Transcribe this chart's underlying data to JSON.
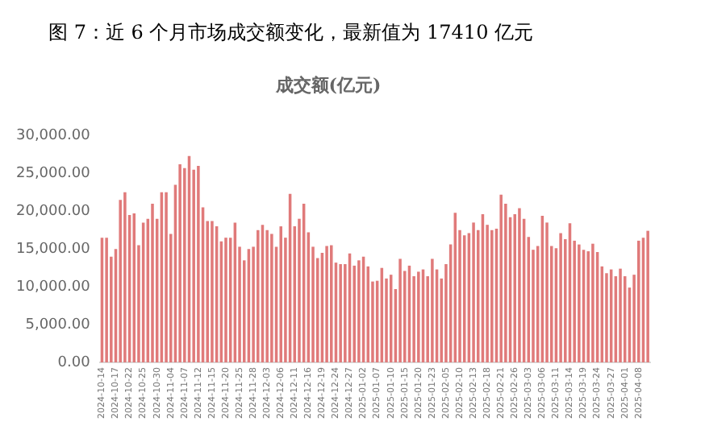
{
  "chart_data": {
    "type": "bar",
    "title": "图 7：近 6 个月市场成交额变化，最新值为 17410 亿元",
    "subtitle": "成交额(亿元)",
    "categories": [
      "2024-10-14",
      null,
      null,
      "2024-10-17",
      null,
      null,
      "2024-10-22",
      null,
      null,
      "2024-10-25",
      null,
      null,
      "2024-10-30",
      null,
      null,
      "2024-11-04",
      null,
      null,
      "2024-11-07",
      null,
      null,
      "2024-11-12",
      null,
      null,
      "2024-11-15",
      null,
      null,
      "2024-11-20",
      null,
      null,
      "2024-11-25",
      null,
      null,
      "2024-11-28",
      null,
      null,
      "2024-12-03",
      null,
      null,
      "2024-12-06",
      null,
      null,
      "2024-12-11",
      null,
      null,
      "2024-12-16",
      null,
      null,
      "2024-12-19",
      null,
      null,
      "2024-12-24",
      null,
      null,
      "2024-12-27",
      null,
      null,
      "2025-01-02",
      null,
      null,
      "2025-01-07",
      null,
      null,
      "2025-01-10",
      null,
      null,
      "2025-01-15",
      null,
      null,
      "2025-01-20",
      null,
      null,
      "2025-01-23",
      null,
      null,
      "2025-02-05",
      null,
      null,
      "2025-02-10",
      null,
      null,
      "2025-02-13",
      null,
      null,
      "2025-02-18",
      null,
      null,
      "2025-02-21",
      null,
      null,
      "2025-02-26",
      null,
      null,
      "2025-03-03",
      null,
      null,
      "2025-03-06",
      null,
      null,
      "2025-03-11",
      null,
      null,
      "2025-03-14",
      null,
      null,
      "2025-03-19",
      null,
      null,
      "2025-03-24",
      null,
      null,
      "2025-03-27",
      null,
      null,
      "2025-04-01",
      null,
      null,
      "2025-04-08",
      null,
      null
    ],
    "values": [
      16500,
      16500,
      14000,
      15000,
      21500,
      22500,
      19500,
      19700,
      15500,
      18500,
      19000,
      21000,
      19000,
      22500,
      22500,
      17000,
      23500,
      26200,
      25700,
      27300,
      25500,
      26000,
      20500,
      18700,
      18700,
      18000,
      16000,
      16500,
      16500,
      18500,
      15300,
      13500,
      15000,
      15300,
      17500,
      18200,
      17500,
      17000,
      15300,
      18000,
      16500,
      22300,
      18000,
      19000,
      21000,
      17200,
      15300,
      13800,
      14500,
      15400,
      15500,
      13200,
      13000,
      13000,
      14400,
      12800,
      13500,
      14000,
      12700,
      10700,
      10800,
      12500,
      11100,
      11600,
      9700,
      13700,
      12100,
      12800,
      11400,
      12000,
      12300,
      11400,
      13700,
      12300,
      11100,
      13000,
      15600,
      19800,
      17500,
      16800,
      17100,
      18500,
      17500,
      19600,
      18200,
      17500,
      17700,
      22200,
      21000,
      19200,
      19600,
      20400,
      19000,
      16600,
      14900,
      15400,
      19400,
      18500,
      15400,
      15100,
      17100,
      16300,
      18400,
      16100,
      15600,
      14900,
      14700,
      15700,
      14600,
      12700,
      11800,
      12300,
      11400,
      12400,
      11400,
      9900,
      11600,
      16100,
      16500,
      17410
    ],
    "color": "#e07a7a",
    "ylim": [
      0,
      30000
    ],
    "yticks": [
      {
        "value": 0,
        "label": "0.00"
      },
      {
        "value": 5000,
        "label": "5,000.00"
      },
      {
        "value": 10000,
        "label": "10,000.00"
      },
      {
        "value": 15000,
        "label": "15,000.00"
      },
      {
        "value": 20000,
        "label": "20,000.00"
      },
      {
        "value": 25000,
        "label": "25,000.00"
      },
      {
        "value": 30000,
        "label": "30,000.00"
      }
    ],
    "grid": false,
    "legend": false
  }
}
